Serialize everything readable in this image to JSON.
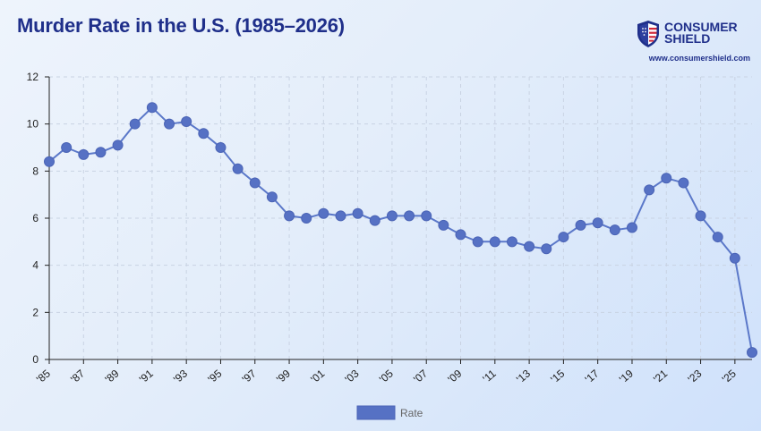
{
  "header": {
    "title": "Murder Rate in the U.S. (1985–2026)"
  },
  "brand": {
    "name": "CONSUMER\nSHIELD",
    "url": "www.consumershield.com",
    "logo_icon": "shield-flag-icon"
  },
  "colors": {
    "line": "#5b78c9",
    "point_fill": "#5671c4",
    "title": "#1f2f8a",
    "grid": "#c9d3e3"
  },
  "chart_data": {
    "type": "line",
    "title": "Murder Rate in the U.S. (1985–2026)",
    "xlabel": "",
    "ylabel": "",
    "ylim": [
      0,
      12
    ],
    "yticks": [
      0,
      2,
      4,
      6,
      8,
      10,
      12
    ],
    "x_tick_labels": [
      "'85",
      "'87",
      "'89",
      "'91",
      "'93",
      "'95",
      "'97",
      "'99",
      "'01",
      "'03",
      "'05",
      "'07",
      "'09",
      "'11",
      "'13",
      "'15",
      "'17",
      "'19",
      "'21",
      "'23",
      "'25"
    ],
    "grid": true,
    "legend_position": "bottom",
    "series": [
      {
        "name": "Rate",
        "x": [
          1985,
          1986,
          1987,
          1988,
          1989,
          1990,
          1991,
          1992,
          1993,
          1994,
          1995,
          1996,
          1997,
          1998,
          1999,
          2000,
          2001,
          2002,
          2003,
          2004,
          2005,
          2006,
          2007,
          2008,
          2009,
          2010,
          2011,
          2012,
          2013,
          2014,
          2015,
          2016,
          2017,
          2018,
          2019,
          2020,
          2021,
          2022,
          2023,
          2024,
          2025,
          2026
        ],
        "values": [
          8.4,
          9.0,
          8.7,
          8.8,
          9.1,
          10.0,
          10.7,
          10.0,
          10.1,
          9.6,
          9.0,
          8.1,
          7.5,
          6.9,
          6.1,
          6.0,
          6.2,
          6.1,
          6.2,
          5.9,
          6.1,
          6.1,
          6.1,
          5.7,
          5.3,
          5.0,
          5.0,
          5.0,
          4.8,
          4.7,
          5.2,
          5.7,
          5.8,
          5.5,
          5.6,
          7.2,
          7.7,
          7.5,
          6.1,
          5.2,
          4.3,
          0.3
        ]
      }
    ]
  }
}
